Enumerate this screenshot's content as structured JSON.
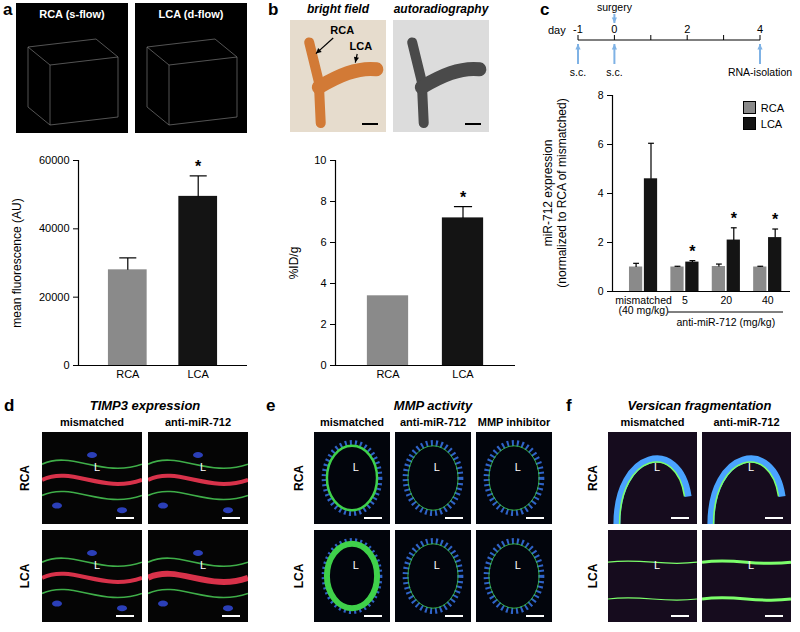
{
  "chart_data": [
    {
      "type": "bar",
      "ylabel": "mean fluorescence (AU)",
      "categories": [
        "RCA",
        "LCA"
      ],
      "values": [
        28000,
        49500
      ],
      "errors": [
        3500,
        6000
      ],
      "significance": [
        null,
        "*"
      ],
      "colors": [
        "#8a8a8a",
        "#141414"
      ],
      "ylim": [
        0,
        60000
      ],
      "yticks": [
        0,
        20000,
        40000,
        60000
      ]
    },
    {
      "type": "bar",
      "ylabel": "%ID/g",
      "categories": [
        "RCA",
        "LCA"
      ],
      "values": [
        3.4,
        7.2
      ],
      "errors": [
        null,
        0.55
      ],
      "significance": [
        null,
        "*"
      ],
      "colors": [
        "#8a8a8a",
        "#141414"
      ],
      "ylim": [
        0,
        10
      ],
      "yticks": [
        0,
        2,
        4,
        6,
        8,
        10
      ]
    },
    {
      "type": "bar",
      "ylabel": "miR-712 expression\n(normalized to RCA of mismatched)",
      "categories": [
        "mismatched\n(40 mg/kg)",
        "5",
        "20",
        "40"
      ],
      "xlabel": "anti-miR-712 (mg/kg)",
      "legend": "top-right",
      "series": [
        {
          "name": "RCA",
          "color": "#8a8a8a",
          "values": [
            1.0,
            1.0,
            1.02,
            1.0
          ],
          "errors": [
            0.15,
            0.03,
            0.1,
            0.03
          ],
          "significance": [
            null,
            null,
            null,
            null
          ]
        },
        {
          "name": "LCA",
          "color": "#141414",
          "values": [
            4.6,
            1.2,
            2.1,
            2.2
          ],
          "errors": [
            1.45,
            0.06,
            0.5,
            0.35
          ],
          "significance": [
            null,
            "*",
            "*",
            "*"
          ]
        }
      ],
      "ylim": [
        0,
        8
      ],
      "yticks": [
        0,
        2,
        4,
        6,
        8
      ]
    }
  ],
  "figure": {
    "panels": [
      {
        "label": "a",
        "images": [
          "RCA (s-flow)",
          "LCA (d-flow)"
        ]
      },
      {
        "label": "b",
        "images": [
          "bright field",
          "autoradiography"
        ],
        "vessel_labels": [
          "RCA",
          "LCA"
        ]
      },
      {
        "label": "c",
        "timeline": {
          "label": "day",
          "ticks": [
            -1,
            0,
            2,
            4
          ],
          "above": [
            {
              "day": 0,
              "label": "surgery"
            }
          ],
          "below": [
            {
              "day": -1,
              "label": "s.c."
            },
            {
              "day": 0,
              "label": "s.c."
            },
            {
              "day": 4,
              "label": "RNA-isolation"
            }
          ]
        }
      },
      {
        "label": "d",
        "title": "TIMP3 expression",
        "columns": [
          "mismatched",
          "anti-miR-712"
        ],
        "rows": [
          "RCA",
          "LCA"
        ],
        "lumen": "L"
      },
      {
        "label": "e",
        "title": "MMP activity",
        "columns": [
          "mismatched",
          "anti-miR-712",
          "MMP inhibitor"
        ],
        "rows": [
          "RCA",
          "LCA"
        ],
        "lumen": "L"
      },
      {
        "label": "f",
        "title": "Versican fragmentation",
        "columns": [
          "mismatched",
          "anti-miR-712"
        ],
        "rows": [
          "RCA",
          "LCA"
        ],
        "lumen": "L"
      }
    ]
  }
}
